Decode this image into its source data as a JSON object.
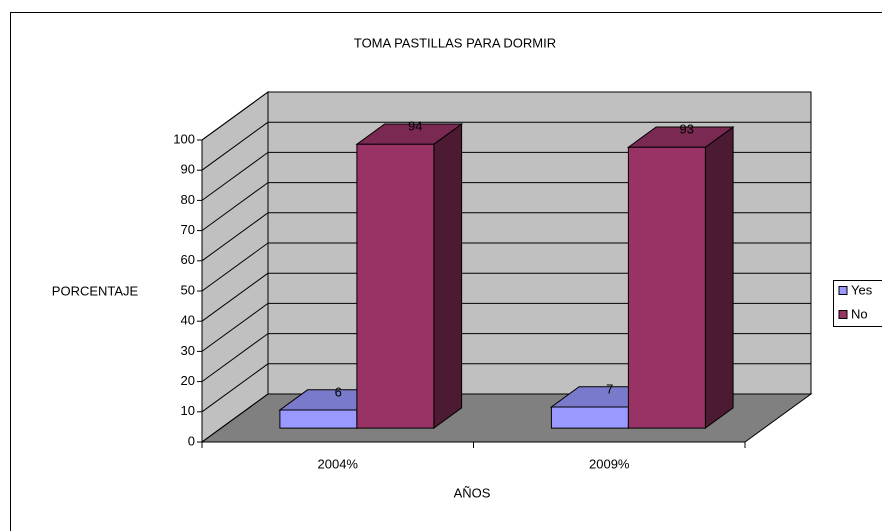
{
  "chart_data": {
    "type": "bar3d",
    "title": "TOMA PASTILLAS PARA DORMIR",
    "y_label": "PORCENTAJE",
    "x_label": "AÑOS",
    "categories": [
      "2004%",
      "2009%"
    ],
    "series": [
      {
        "name": "Yes",
        "color": "#9999ff",
        "values": [
          6,
          7
        ]
      },
      {
        "name": "No",
        "color": "#993366",
        "values": [
          94,
          93
        ]
      }
    ],
    "ylim": [
      0,
      100
    ],
    "yticks": [
      0,
      10,
      20,
      30,
      40,
      50,
      60,
      70,
      80,
      90,
      100
    ],
    "grid": true,
    "legend": "right"
  }
}
